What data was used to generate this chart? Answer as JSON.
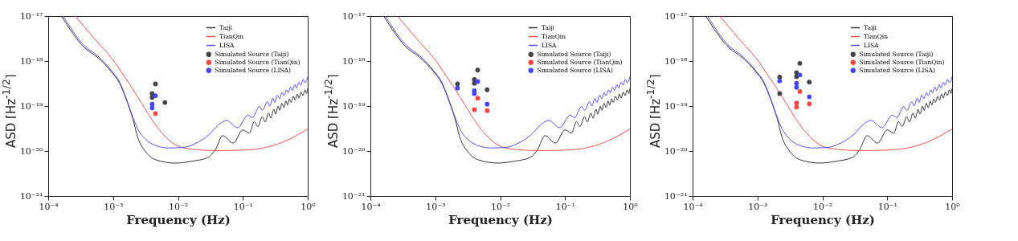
{
  "chart_data": [
    {
      "type": "line",
      "xlabel": "Frequency (Hz)",
      "ylabel": "ASD [Hz$^{-1/2}$]",
      "xlim": [
        0.0001,
        1
      ],
      "ylim": [
        1e-21,
        1e-17
      ],
      "log": "xy",
      "grid": false,
      "legend": "top right",
      "xticks": [
        {
          "value": 0.0001,
          "label": "10⁻⁴"
        },
        {
          "value": 0.001,
          "label": "10⁻³"
        },
        {
          "value": 0.01,
          "label": "10⁻²"
        },
        {
          "value": 0.1,
          "label": "10⁻¹"
        },
        {
          "value": 1,
          "label": "10⁰"
        }
      ],
      "yticks": [
        {
          "value": 1e-21,
          "label": "10⁻²¹"
        },
        {
          "value": 1e-20,
          "label": "10⁻²⁰"
        },
        {
          "value": 1e-19,
          "label": "10⁻¹⁹"
        },
        {
          "value": 1e-18,
          "label": "10⁻¹⁸"
        },
        {
          "value": 1e-17,
          "label": "10⁻¹⁷"
        }
      ],
      "series": [
        {
          "name": "Taiji",
          "type": "line",
          "color": "#333333",
          "x": [
            0.00016,
            0.00036,
            0.00058,
            0.00093,
            0.00126,
            0.00166,
            0.002,
            0.0024,
            0.0032,
            0.0047,
            0.0091,
            0.016,
            0.029,
            0.038,
            0.049,
            0.071,
            0.1,
            0.126,
            0.15,
            0.17,
            0.2,
            0.22,
            0.25,
            0.27,
            0.3,
            0.32,
            0.35,
            0.37,
            0.4,
            0.43,
            0.46,
            0.49,
            0.52,
            0.55,
            0.6,
            0.64,
            0.69,
            0.73,
            0.79,
            0.84,
            0.91,
            0.96,
            1
          ],
          "values": [
            1e-17,
            2e-18,
            1.2e-18,
            5.9e-19,
            3.2e-19,
            1.2e-19,
            5.4e-20,
            2e-20,
            9.5e-21,
            6.3e-21,
            5.4e-21,
            5.9e-21,
            7.2e-21,
            1.1e-20,
            2.2e-20,
            1.5e-20,
            2.95e-20,
            2.5e-20,
            4.5e-20,
            3.5e-20,
            5.8e-20,
            4.4e-20,
            7e-20,
            5.4e-20,
            8.5e-20,
            6.6e-20,
            1e-19,
            8e-20,
            1.15e-19,
            9.2e-20,
            1.3e-19,
            1.05e-19,
            1.45e-19,
            1.2e-19,
            1.65e-19,
            1.35e-19,
            1.85e-19,
            1.5e-19,
            2.05e-19,
            1.7e-19,
            2.3e-19,
            1.9e-19,
            2.5e-19
          ]
        },
        {
          "name": "TianQin",
          "type": "line",
          "color": "#ff5050",
          "x": [
            0.00026,
            0.00058,
            0.00093,
            0.0015,
            0.0024,
            0.0034,
            0.0047,
            0.0066,
            0.0093,
            0.016,
            0.04,
            0.1,
            0.26,
            0.45,
            1
          ],
          "values": [
            1e-17,
            2.6e-18,
            1.2e-18,
            4.5e-19,
            1.6e-19,
            7.1e-20,
            3.5e-20,
            2e-20,
            1.35e-20,
            1.1e-20,
            1.02e-20,
            1.05e-20,
            1.26e-20,
            1.66e-20,
            3.1e-20
          ]
        },
        {
          "name": "LISA",
          "type": "line",
          "color": "#5050ff",
          "x": [
            0.00017,
            0.00036,
            0.00058,
            0.00093,
            0.00126,
            0.00166,
            0.002,
            0.0024,
            0.0032,
            0.0047,
            0.0072,
            0.012,
            0.02,
            0.03,
            0.042,
            0.056,
            0.083,
            0.12,
            0.14,
            0.18,
            0.2,
            0.24,
            0.26,
            0.29,
            0.31,
            0.34,
            0.37,
            0.4,
            0.43,
            0.47,
            0.5,
            0.54,
            0.58,
            0.63,
            0.67,
            0.73,
            0.78,
            0.85,
            0.91,
            1
          ],
          "values": [
            1e-17,
            2.2e-18,
            1.3e-18,
            6.3e-19,
            3.4e-19,
            1.26e-19,
            5.8e-20,
            3.1e-20,
            1.8e-20,
            1.3e-20,
            1.17e-20,
            1.2e-20,
            1.55e-20,
            2.3e-20,
            3.8e-20,
            4.8e-20,
            3.3e-20,
            6.3e-20,
            5.5e-20,
            9.8e-20,
            8e-20,
            1.25e-19,
            1e-19,
            1.5e-19,
            1.2e-19,
            1.75e-19,
            1.45e-19,
            2e-19,
            1.7e-19,
            2.3e-19,
            1.95e-19,
            2.65e-19,
            2.2e-19,
            3e-19,
            2.5e-19,
            3.4e-19,
            2.9e-19,
            3.9e-19,
            3.3e-19,
            4.5e-19
          ]
        },
        {
          "name": "Simulated Source (Taiji)",
          "type": "scatter",
          "color": "#444444",
          "x": [
            0.0045,
            0.004,
            0.004,
            0.0063
          ],
          "values": [
            3.1e-19,
            1.9e-19,
            1.55e-19,
            1.2e-19
          ]
        },
        {
          "name": "Simulated Source (TianQin)",
          "type": "scatter",
          "color": "#ff4444",
          "x": [
            0.0045
          ],
          "values": [
            6.8e-20
          ]
        },
        {
          "name": "Simulated Source (LISA)",
          "type": "scatter",
          "color": "#4444ff",
          "x": [
            0.0045,
            0.004,
            0.004
          ],
          "values": [
            1.7e-19,
            1.1e-19,
            9.1e-20
          ]
        }
      ]
    },
    {
      "type": "line",
      "xlabel": "Frequency (Hz)",
      "ylabel": "ASD [Hz$^{-1/2}$]",
      "xlim": [
        0.0001,
        1
      ],
      "ylim": [
        1e-21,
        1e-17
      ],
      "log": "xy",
      "grid": false,
      "legend": "top right",
      "xticks": [
        {
          "value": 0.0001,
          "label": "10⁻⁴"
        },
        {
          "value": 0.001,
          "label": "10⁻³"
        },
        {
          "value": 0.01,
          "label": "10⁻²"
        },
        {
          "value": 0.1,
          "label": "10⁻¹"
        },
        {
          "value": 1,
          "label": "10⁰"
        }
      ],
      "yticks": [
        {
          "value": 1e-21,
          "label": "10⁻²¹"
        },
        {
          "value": 1e-20,
          "label": "10⁻²⁰"
        },
        {
          "value": 1e-19,
          "label": "10⁻¹⁹"
        },
        {
          "value": 1e-18,
          "label": "10⁻¹⁸"
        },
        {
          "value": 1e-17,
          "label": "10⁻¹⁷"
        }
      ],
      "series": [
        {
          "name": "Taiji",
          "type": "line",
          "color": "#333333",
          "x": [
            0.00016,
            0.00036,
            0.00058,
            0.00093,
            0.00126,
            0.00166,
            0.002,
            0.0024,
            0.0032,
            0.0047,
            0.0091,
            0.016,
            0.029,
            0.038,
            0.049,
            0.071,
            0.1,
            0.126,
            0.15,
            0.17,
            0.2,
            0.22,
            0.25,
            0.27,
            0.3,
            0.32,
            0.35,
            0.37,
            0.4,
            0.43,
            0.46,
            0.49,
            0.52,
            0.55,
            0.6,
            0.64,
            0.69,
            0.73,
            0.79,
            0.84,
            0.91,
            0.96,
            1
          ],
          "values": [
            1e-17,
            2e-18,
            1.2e-18,
            5.9e-19,
            3.2e-19,
            1.2e-19,
            5.4e-20,
            2e-20,
            9.5e-21,
            6.3e-21,
            5.4e-21,
            5.9e-21,
            7.2e-21,
            1.1e-20,
            2.2e-20,
            1.5e-20,
            2.95e-20,
            2.5e-20,
            4.5e-20,
            3.5e-20,
            5.8e-20,
            4.4e-20,
            7e-20,
            5.4e-20,
            8.5e-20,
            6.6e-20,
            1e-19,
            8e-20,
            1.15e-19,
            9.2e-20,
            1.3e-19,
            1.05e-19,
            1.45e-19,
            1.2e-19,
            1.65e-19,
            1.35e-19,
            1.85e-19,
            1.5e-19,
            2.05e-19,
            1.7e-19,
            2.3e-19,
            1.9e-19,
            2.5e-19
          ]
        },
        {
          "name": "TianQin",
          "type": "line",
          "color": "#ff5050",
          "x": [
            0.00026,
            0.00058,
            0.00093,
            0.0015,
            0.0024,
            0.0034,
            0.0047,
            0.0066,
            0.0093,
            0.016,
            0.04,
            0.1,
            0.26,
            0.45,
            1
          ],
          "values": [
            1e-17,
            2.6e-18,
            1.2e-18,
            4.5e-19,
            1.6e-19,
            7.1e-20,
            3.5e-20,
            2e-20,
            1.35e-20,
            1.1e-20,
            1.02e-20,
            1.05e-20,
            1.26e-20,
            1.66e-20,
            3.1e-20
          ]
        },
        {
          "name": "LISA",
          "type": "line",
          "color": "#5050ff",
          "x": [
            0.00017,
            0.00036,
            0.00058,
            0.00093,
            0.00126,
            0.00166,
            0.002,
            0.0024,
            0.0032,
            0.0047,
            0.0072,
            0.012,
            0.02,
            0.03,
            0.042,
            0.056,
            0.083,
            0.12,
            0.14,
            0.18,
            0.2,
            0.24,
            0.26,
            0.29,
            0.31,
            0.34,
            0.37,
            0.4,
            0.43,
            0.47,
            0.5,
            0.54,
            0.58,
            0.63,
            0.67,
            0.73,
            0.78,
            0.85,
            0.91,
            1
          ],
          "values": [
            1e-17,
            2.2e-18,
            1.3e-18,
            6.3e-19,
            3.4e-19,
            1.26e-19,
            5.8e-20,
            3.1e-20,
            1.8e-20,
            1.3e-20,
            1.17e-20,
            1.2e-20,
            1.55e-20,
            2.3e-20,
            3.8e-20,
            4.8e-20,
            3.3e-20,
            6.3e-20,
            5.5e-20,
            9.8e-20,
            8e-20,
            1.25e-19,
            1e-19,
            1.5e-19,
            1.2e-19,
            1.75e-19,
            1.45e-19,
            2e-19,
            1.7e-19,
            2.3e-19,
            1.95e-19,
            2.65e-19,
            2.2e-19,
            3e-19,
            2.5e-19,
            3.4e-19,
            2.9e-19,
            3.9e-19,
            3.3e-19,
            4.5e-19
          ]
        },
        {
          "name": "Simulated Source (Taiji)",
          "type": "scatter",
          "color": "#444444",
          "x": [
            0.0022,
            0.004,
            0.004,
            0.0045,
            0.0063
          ],
          "values": [
            3.1e-19,
            3.9e-19,
            3.2e-19,
            6.3e-19,
            2.3e-19
          ]
        },
        {
          "name": "Simulated Source (TianQin)",
          "type": "scatter",
          "color": "#ff4444",
          "x": [
            0.0045,
            0.004,
            0.0063
          ],
          "values": [
            1.5e-19,
            8.3e-20,
            7.9e-20
          ]
        },
        {
          "name": "Simulated Source (LISA)",
          "type": "scatter",
          "color": "#4444ff",
          "x": [
            0.0022,
            0.004,
            0.004,
            0.0045,
            0.0063
          ],
          "values": [
            2.5e-19,
            2.2e-19,
            1.9e-19,
            3.5e-19,
            1.1e-19
          ]
        }
      ]
    },
    {
      "type": "line",
      "xlabel": "Frequency (Hz)",
      "ylabel": "ASD [Hz$^{-1/2}$]",
      "xlim": [
        0.0001,
        1
      ],
      "ylim": [
        1e-21,
        1e-17
      ],
      "log": "xy",
      "grid": false,
      "legend": "top right",
      "xticks": [
        {
          "value": 0.0001,
          "label": "10⁻⁴"
        },
        {
          "value": 0.001,
          "label": "10⁻³"
        },
        {
          "value": 0.01,
          "label": "10⁻²"
        },
        {
          "value": 0.1,
          "label": "10⁻¹"
        },
        {
          "value": 1,
          "label": "10⁰"
        }
      ],
      "yticks": [
        {
          "value": 1e-21,
          "label": "10⁻²¹"
        },
        {
          "value": 1e-20,
          "label": "10⁻²⁰"
        },
        {
          "value": 1e-19,
          "label": "10⁻¹⁹"
        },
        {
          "value": 1e-18,
          "label": "10⁻¹⁸"
        },
        {
          "value": 1e-17,
          "label": "10⁻¹⁷"
        }
      ],
      "series": [
        {
          "name": "Taiji",
          "type": "line",
          "color": "#333333",
          "x": [
            0.00016,
            0.00036,
            0.00058,
            0.00093,
            0.00126,
            0.00166,
            0.002,
            0.0024,
            0.0032,
            0.0047,
            0.0091,
            0.016,
            0.029,
            0.038,
            0.049,
            0.071,
            0.1,
            0.126,
            0.15,
            0.17,
            0.2,
            0.22,
            0.25,
            0.27,
            0.3,
            0.32,
            0.35,
            0.37,
            0.4,
            0.43,
            0.46,
            0.49,
            0.52,
            0.55,
            0.6,
            0.64,
            0.69,
            0.73,
            0.79,
            0.84,
            0.91,
            0.96,
            1
          ],
          "values": [
            1e-17,
            2e-18,
            1.2e-18,
            5.9e-19,
            3.2e-19,
            1.2e-19,
            5.4e-20,
            2e-20,
            9.5e-21,
            6.3e-21,
            5.4e-21,
            5.9e-21,
            7.2e-21,
            1.1e-20,
            2.2e-20,
            1.5e-20,
            2.95e-20,
            2.5e-20,
            4.5e-20,
            3.5e-20,
            5.8e-20,
            4.4e-20,
            7e-20,
            5.4e-20,
            8.5e-20,
            6.6e-20,
            1e-19,
            8e-20,
            1.15e-19,
            9.2e-20,
            1.3e-19,
            1.05e-19,
            1.45e-19,
            1.2e-19,
            1.65e-19,
            1.35e-19,
            1.85e-19,
            1.5e-19,
            2.05e-19,
            1.7e-19,
            2.3e-19,
            1.9e-19,
            2.5e-19
          ]
        },
        {
          "name": "TianQin",
          "type": "line",
          "color": "#ff5050",
          "x": [
            0.00026,
            0.00058,
            0.00093,
            0.0015,
            0.0024,
            0.0034,
            0.0047,
            0.0066,
            0.0093,
            0.016,
            0.04,
            0.1,
            0.26,
            0.45,
            1
          ],
          "values": [
            1e-17,
            2.6e-18,
            1.2e-18,
            4.5e-19,
            1.6e-19,
            7.1e-20,
            3.5e-20,
            2e-20,
            1.35e-20,
            1.1e-20,
            1.02e-20,
            1.05e-20,
            1.26e-20,
            1.66e-20,
            3.1e-20
          ]
        },
        {
          "name": "LISA",
          "type": "line",
          "color": "#5050ff",
          "x": [
            0.00017,
            0.00036,
            0.00058,
            0.00093,
            0.00126,
            0.00166,
            0.002,
            0.0024,
            0.0032,
            0.0047,
            0.0072,
            0.012,
            0.02,
            0.03,
            0.042,
            0.056,
            0.083,
            0.12,
            0.14,
            0.18,
            0.2,
            0.24,
            0.26,
            0.29,
            0.31,
            0.34,
            0.37,
            0.4,
            0.43,
            0.47,
            0.5,
            0.54,
            0.58,
            0.63,
            0.67,
            0.73,
            0.78,
            0.85,
            0.91,
            1
          ],
          "values": [
            1e-17,
            2.2e-18,
            1.3e-18,
            6.3e-19,
            3.4e-19,
            1.26e-19,
            5.8e-20,
            3.1e-20,
            1.8e-20,
            1.3e-20,
            1.17e-20,
            1.2e-20,
            1.55e-20,
            2.3e-20,
            3.8e-20,
            4.8e-20,
            3.3e-20,
            6.3e-20,
            5.5e-20,
            9.8e-20,
            8e-20,
            1.25e-19,
            1e-19,
            1.5e-19,
            1.2e-19,
            1.75e-19,
            1.45e-19,
            2e-19,
            1.7e-19,
            2.3e-19,
            1.95e-19,
            2.65e-19,
            2.2e-19,
            3e-19,
            2.5e-19,
            3.4e-19,
            2.9e-19,
            3.9e-19,
            3.3e-19,
            4.5e-19
          ]
        },
        {
          "name": "Simulated Source (Taiji)",
          "type": "scatter",
          "color": "#444444",
          "x": [
            0.0022,
            0.0022,
            0.004,
            0.004,
            0.0045,
            0.0063
          ],
          "values": [
            4.4e-19,
            1.9e-19,
            5.5e-19,
            4.5e-19,
            8.9e-19,
            3.4e-19
          ]
        },
        {
          "name": "Simulated Source (TianQin)",
          "type": "scatter",
          "color": "#ff4444",
          "x": [
            0.0045,
            0.004,
            0.004,
            0.0063
          ],
          "values": [
            2.1e-19,
            1.17e-19,
            9.5e-20,
            1.12e-19
          ]
        },
        {
          "name": "Simulated Source (LISA)",
          "type": "scatter",
          "color": "#4444ff",
          "x": [
            0.0022,
            0.004,
            0.004,
            0.0045,
            0.0063
          ],
          "values": [
            3.6e-19,
            3.2e-19,
            2.6e-19,
            4.9e-19,
            1.6e-19
          ]
        }
      ]
    }
  ]
}
